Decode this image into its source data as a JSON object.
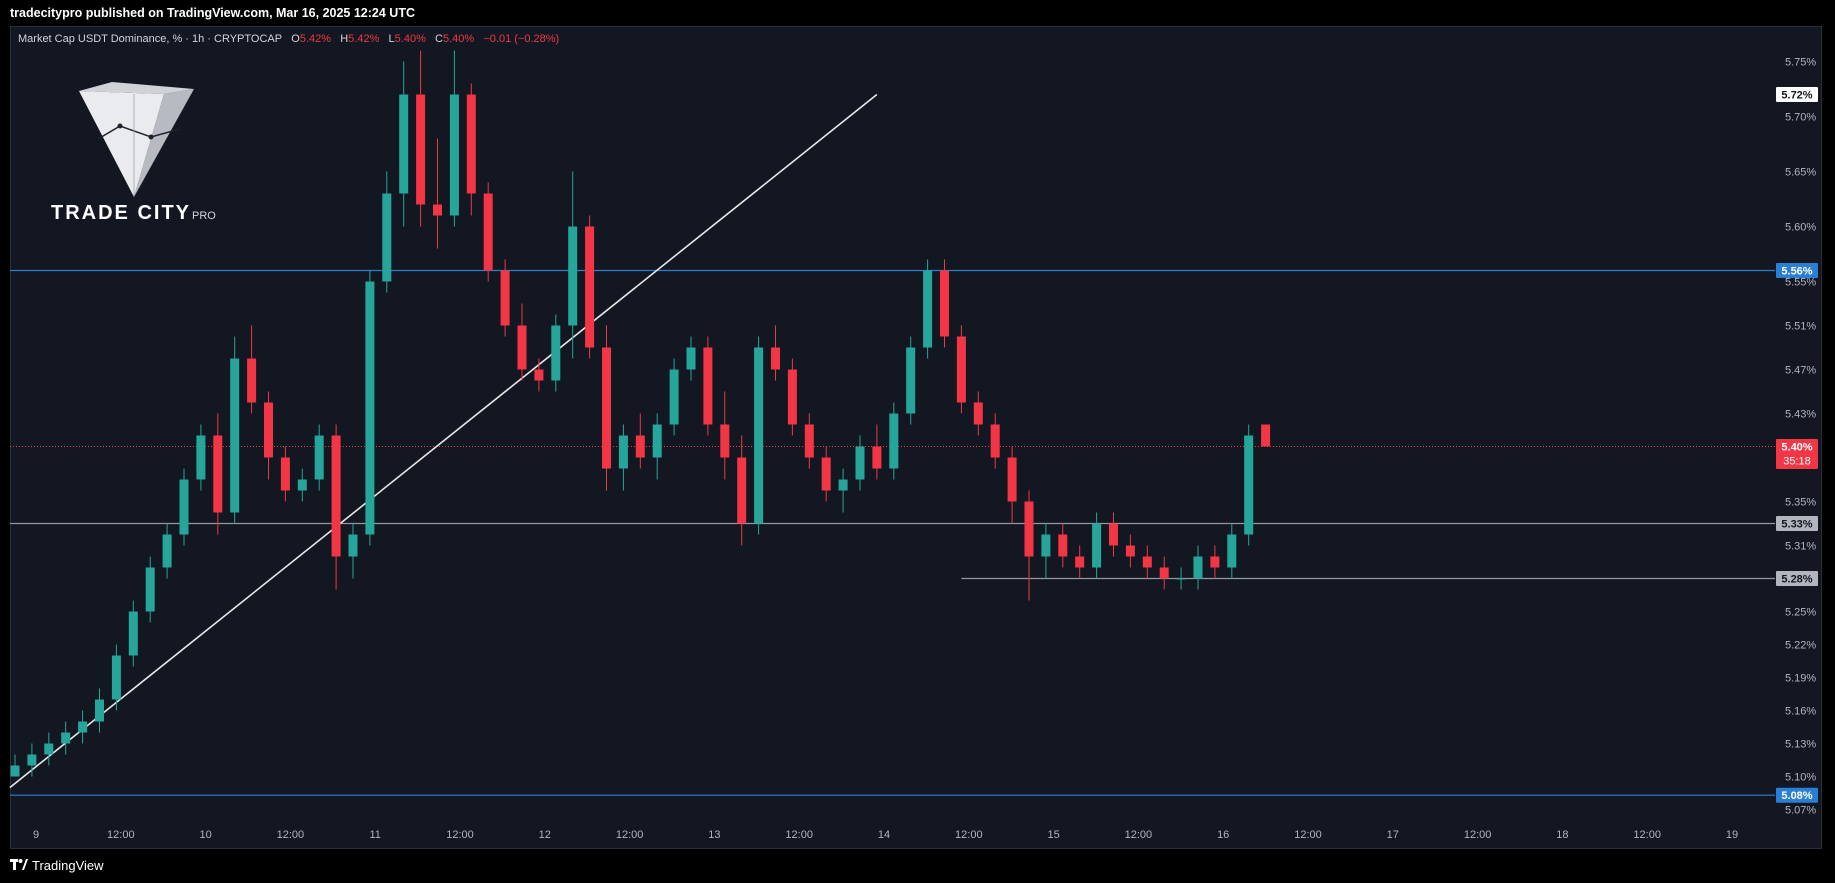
{
  "header": {
    "published_line": "tradecitypro published on TradingView.com, Mar 16, 2025 12:24 UTC"
  },
  "legend": {
    "symbol": "Market Cap USDT Dominance, % · 1h · CRYPTOCAP",
    "o_label": "O",
    "o_value": "5.42%",
    "h_label": "H",
    "h_value": "5.42%",
    "l_label": "L",
    "l_value": "5.40%",
    "c_label": "C",
    "c_value": "5.40%",
    "change": "−0.01 (−0.28%)"
  },
  "logo": {
    "name": "TRADE CITY",
    "suffix": "PRO"
  },
  "footer": {
    "brand": "TradingView"
  },
  "colors": {
    "up": "#26a69a",
    "down": "#f23645",
    "blue_line": "#2a7fd4",
    "gray_line": "#9598a1",
    "background": "#131722"
  },
  "chart_data": {
    "type": "candlestick",
    "symbol": "Market Cap USDT Dominance, %",
    "interval": "1h",
    "ylim": [
      5.065,
      5.765
    ],
    "y_ticks": [
      "5.75%",
      "5.70%",
      "5.65%",
      "5.60%",
      "5.55%",
      "5.51%",
      "5.47%",
      "5.43%",
      "5.35%",
      "5.31%",
      "5.25%",
      "5.22%",
      "5.19%",
      "5.16%",
      "5.13%",
      "5.10%",
      "5.07%"
    ],
    "y_tick_values": [
      5.75,
      5.7,
      5.65,
      5.6,
      5.55,
      5.51,
      5.47,
      5.43,
      5.35,
      5.31,
      5.25,
      5.22,
      5.19,
      5.16,
      5.13,
      5.1,
      5.07
    ],
    "x_ticks": [
      "9",
      "12:00",
      "10",
      "12:00",
      "11",
      "12:00",
      "12",
      "12:00",
      "13",
      "12:00",
      "14",
      "12:00",
      "15",
      "12:00",
      "16",
      "12:00",
      "17",
      "12:00",
      "18",
      "12:00",
      "19"
    ],
    "price_labels": [
      {
        "text": "5.72%",
        "value": 5.72,
        "style": "white"
      },
      {
        "text": "5.56%",
        "value": 5.56,
        "style": "blue"
      },
      {
        "text": "5.40%",
        "value": 5.4,
        "style": "red",
        "countdown": "35:18"
      },
      {
        "text": "5.33%",
        "value": 5.33,
        "style": "gray"
      },
      {
        "text": "5.28%",
        "value": 5.28,
        "style": "gray"
      },
      {
        "text": "5.08%",
        "value": 5.083,
        "style": "blue"
      }
    ],
    "horizontal_lines": [
      {
        "value": 5.56,
        "color": "#2a7fd4",
        "start_index": 0
      },
      {
        "value": 5.33,
        "color": "#9598a1",
        "start_index": 0
      },
      {
        "value": 5.28,
        "color": "#9598a1",
        "start_index": 56
      },
      {
        "value": 5.083,
        "color": "#2a7fd4",
        "start_index": 0
      },
      {
        "value": 5.4,
        "color": "#f23645",
        "dashed": true,
        "start_index": 0
      }
    ],
    "trendline": {
      "from": [
        -0.3,
        5.09
      ],
      "to": [
        51,
        5.72
      ]
    },
    "candles": [
      [
        5.1,
        5.12,
        5.1,
        5.11
      ],
      [
        5.11,
        5.13,
        5.1,
        5.12
      ],
      [
        5.12,
        5.14,
        5.11,
        5.13
      ],
      [
        5.13,
        5.15,
        5.12,
        5.14
      ],
      [
        5.14,
        5.16,
        5.13,
        5.15
      ],
      [
        5.15,
        5.18,
        5.14,
        5.17
      ],
      [
        5.17,
        5.22,
        5.16,
        5.21
      ],
      [
        5.21,
        5.26,
        5.2,
        5.25
      ],
      [
        5.25,
        5.3,
        5.24,
        5.29
      ],
      [
        5.29,
        5.33,
        5.28,
        5.32
      ],
      [
        5.32,
        5.38,
        5.31,
        5.37
      ],
      [
        5.37,
        5.42,
        5.36,
        5.41
      ],
      [
        5.41,
        5.43,
        5.32,
        5.34
      ],
      [
        5.34,
        5.5,
        5.33,
        5.48
      ],
      [
        5.48,
        5.51,
        5.43,
        5.44
      ],
      [
        5.44,
        5.45,
        5.37,
        5.39
      ],
      [
        5.39,
        5.4,
        5.35,
        5.36
      ],
      [
        5.36,
        5.38,
        5.35,
        5.37
      ],
      [
        5.37,
        5.42,
        5.36,
        5.41
      ],
      [
        5.41,
        5.42,
        5.27,
        5.3
      ],
      [
        5.3,
        5.33,
        5.28,
        5.32
      ],
      [
        5.32,
        5.56,
        5.31,
        5.55
      ],
      [
        5.55,
        5.65,
        5.54,
        5.63
      ],
      [
        5.63,
        5.75,
        5.6,
        5.72
      ],
      [
        5.72,
        5.76,
        5.6,
        5.62
      ],
      [
        5.62,
        5.68,
        5.58,
        5.61
      ],
      [
        5.61,
        5.76,
        5.6,
        5.72
      ],
      [
        5.72,
        5.73,
        5.61,
        5.63
      ],
      [
        5.63,
        5.64,
        5.55,
        5.56
      ],
      [
        5.56,
        5.57,
        5.5,
        5.51
      ],
      [
        5.51,
        5.53,
        5.46,
        5.47
      ],
      [
        5.47,
        5.48,
        5.45,
        5.46
      ],
      [
        5.46,
        5.52,
        5.45,
        5.51
      ],
      [
        5.51,
        5.65,
        5.48,
        5.6
      ],
      [
        5.6,
        5.61,
        5.48,
        5.49
      ],
      [
        5.49,
        5.51,
        5.36,
        5.38
      ],
      [
        5.38,
        5.42,
        5.36,
        5.41
      ],
      [
        5.41,
        5.43,
        5.38,
        5.39
      ],
      [
        5.39,
        5.43,
        5.37,
        5.42
      ],
      [
        5.42,
        5.48,
        5.41,
        5.47
      ],
      [
        5.47,
        5.5,
        5.46,
        5.49
      ],
      [
        5.49,
        5.5,
        5.41,
        5.42
      ],
      [
        5.42,
        5.45,
        5.37,
        5.39
      ],
      [
        5.39,
        5.41,
        5.31,
        5.33
      ],
      [
        5.33,
        5.5,
        5.32,
        5.49
      ],
      [
        5.49,
        5.51,
        5.46,
        5.47
      ],
      [
        5.47,
        5.48,
        5.41,
        5.42
      ],
      [
        5.42,
        5.43,
        5.38,
        5.39
      ],
      [
        5.39,
        5.4,
        5.35,
        5.36
      ],
      [
        5.36,
        5.38,
        5.34,
        5.37
      ],
      [
        5.37,
        5.41,
        5.36,
        5.4
      ],
      [
        5.4,
        5.42,
        5.37,
        5.38
      ],
      [
        5.38,
        5.44,
        5.37,
        5.43
      ],
      [
        5.43,
        5.5,
        5.42,
        5.49
      ],
      [
        5.49,
        5.57,
        5.48,
        5.56
      ],
      [
        5.56,
        5.57,
        5.49,
        5.5
      ],
      [
        5.5,
        5.51,
        5.43,
        5.44
      ],
      [
        5.44,
        5.45,
        5.41,
        5.42
      ],
      [
        5.42,
        5.43,
        5.38,
        5.39
      ],
      [
        5.39,
        5.4,
        5.33,
        5.35
      ],
      [
        5.35,
        5.36,
        5.26,
        5.3
      ],
      [
        5.3,
        5.33,
        5.28,
        5.32
      ],
      [
        5.32,
        5.33,
        5.29,
        5.3
      ],
      [
        5.3,
        5.31,
        5.28,
        5.29
      ],
      [
        5.29,
        5.34,
        5.28,
        5.33
      ],
      [
        5.33,
        5.34,
        5.3,
        5.31
      ],
      [
        5.31,
        5.32,
        5.29,
        5.3
      ],
      [
        5.3,
        5.31,
        5.28,
        5.29
      ],
      [
        5.29,
        5.3,
        5.27,
        5.28
      ],
      [
        5.28,
        5.29,
        5.27,
        5.28
      ],
      [
        5.28,
        5.31,
        5.27,
        5.3
      ],
      [
        5.3,
        5.31,
        5.28,
        5.29
      ],
      [
        5.29,
        5.33,
        5.28,
        5.32
      ],
      [
        5.32,
        5.42,
        5.31,
        5.41
      ],
      [
        5.42,
        5.42,
        5.4,
        5.4
      ]
    ]
  }
}
